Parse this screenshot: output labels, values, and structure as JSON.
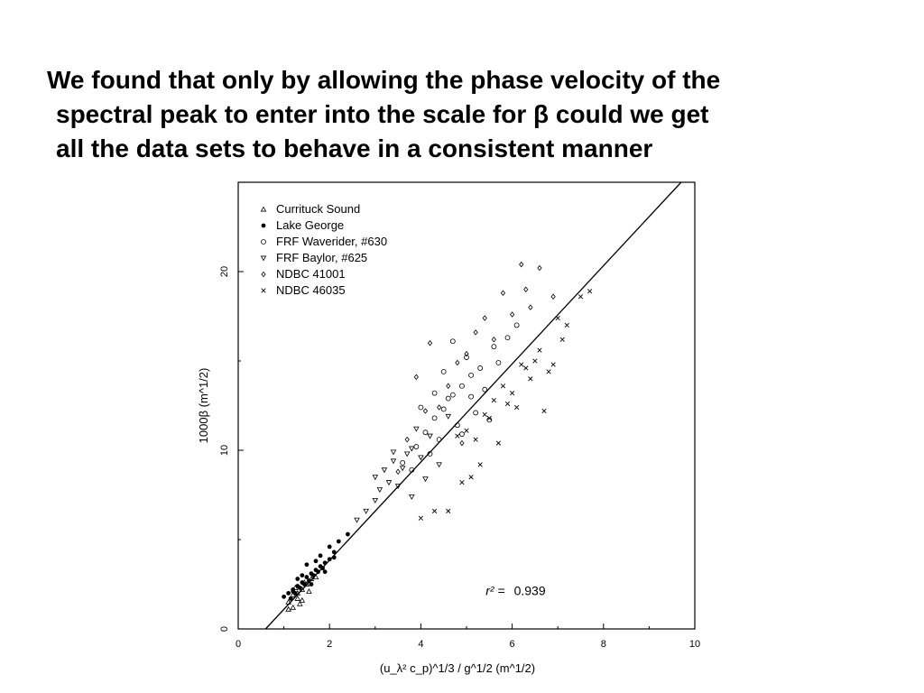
{
  "slide": {
    "lines": [
      "We found that only by allowing the phase velocity of the",
      "spectral peak to enter into the scale for β could we get",
      "all the data sets to behave in a consistent manner"
    ]
  },
  "chart_data": {
    "type": "scatter",
    "title": "",
    "xlabel": "(u_λ² c_p)^1/3 / g^1/2 (m^1/2)",
    "ylabel": "1000β (m^1/2)",
    "xlim": [
      0,
      10
    ],
    "ylim": [
      0,
      25
    ],
    "x_ticks": [
      "0",
      "2",
      "4",
      "6",
      "8",
      "10"
    ],
    "y_ticks": [
      "0",
      "10",
      "20"
    ],
    "grid": false,
    "legend_position": "top-left",
    "fit_line": {
      "x": [
        0.6,
        9.7
      ],
      "y": [
        0,
        25
      ]
    },
    "annotation": {
      "label": "r² =",
      "value": "0.939"
    },
    "colors": {
      "marks": "#000000",
      "background": "#ffffff"
    },
    "series": [
      {
        "name": "Currituck Sound",
        "marker": "triangle-up",
        "x": [
          1.1,
          1.2,
          1.3,
          1.4,
          1.2,
          1.5,
          1.3,
          1.6,
          1.1,
          1.4,
          1.7,
          1.25,
          1.35,
          1.45,
          1.55
        ],
        "y": [
          1.5,
          1.9,
          1.7,
          2.2,
          1.2,
          2.5,
          2.0,
          2.8,
          1.1,
          1.6,
          2.9,
          2.3,
          1.4,
          2.6,
          2.1
        ]
      },
      {
        "name": "Lake George",
        "marker": "filled-circle",
        "x": [
          1.0,
          1.1,
          1.2,
          1.3,
          1.4,
          1.5,
          1.6,
          1.7,
          1.8,
          1.9,
          2.0,
          2.1,
          1.15,
          1.25,
          1.35,
          1.45,
          1.55,
          1.65,
          1.75,
          1.85,
          1.3,
          1.5,
          1.7,
          1.2,
          1.4,
          1.6,
          1.8,
          2.0,
          2.2,
          2.4,
          1.9,
          2.1
        ],
        "y": [
          1.8,
          2.0,
          2.2,
          2.4,
          2.6,
          2.9,
          3.1,
          3.3,
          3.5,
          3.7,
          3.9,
          4.3,
          1.7,
          2.0,
          2.3,
          2.5,
          2.7,
          3.0,
          3.2,
          3.4,
          2.8,
          3.6,
          3.8,
          2.1,
          3.0,
          2.5,
          4.1,
          4.6,
          4.9,
          5.3,
          3.2,
          4.0
        ]
      },
      {
        "name": "FRF Waverider, #630",
        "marker": "open-circle",
        "x": [
          3.9,
          4.1,
          4.3,
          4.5,
          4.7,
          4.9,
          5.1,
          5.3,
          4.0,
          4.2,
          4.4,
          4.6,
          4.8,
          5.0,
          5.2,
          5.4,
          5.6,
          3.8,
          4.5,
          4.9,
          5.5,
          3.6,
          4.3,
          4.7,
          5.1,
          5.7,
          5.9,
          6.1
        ],
        "y": [
          10.2,
          11.0,
          11.8,
          12.3,
          13.1,
          13.6,
          14.2,
          14.6,
          12.4,
          9.8,
          10.6,
          12.9,
          11.4,
          15.2,
          12.1,
          13.4,
          15.8,
          8.9,
          14.4,
          10.9,
          11.7,
          9.3,
          13.2,
          16.1,
          13.0,
          14.9,
          16.3,
          17.0
        ]
      },
      {
        "name": "FRF Baylor, #625",
        "marker": "triangle-down",
        "x": [
          3.0,
          3.2,
          3.4,
          3.6,
          3.8,
          4.0,
          4.2,
          3.1,
          3.3,
          3.5,
          3.7,
          3.9,
          4.1,
          2.8,
          2.6,
          3.4,
          3.8,
          4.4,
          4.6,
          3.0
        ],
        "y": [
          8.5,
          8.9,
          9.4,
          9.0,
          10.1,
          9.6,
          10.8,
          7.8,
          8.2,
          8.0,
          9.8,
          11.2,
          8.4,
          6.6,
          6.1,
          9.9,
          7.4,
          9.2,
          11.9,
          7.2
        ]
      },
      {
        "name": "NDBC 41001",
        "marker": "diamond",
        "x": [
          3.5,
          3.9,
          4.2,
          4.6,
          5.0,
          5.4,
          5.8,
          6.2,
          6.6,
          6.9,
          6.0,
          6.4,
          5.2,
          4.4,
          4.8,
          5.6,
          4.1,
          3.7,
          4.9,
          6.3
        ],
        "y": [
          8.8,
          14.1,
          16.0,
          13.6,
          15.4,
          17.4,
          18.8,
          20.4,
          20.2,
          18.6,
          17.6,
          18.0,
          16.6,
          12.4,
          14.9,
          16.2,
          12.2,
          10.6,
          10.4,
          19.0
        ]
      },
      {
        "name": "NDBC 46035",
        "marker": "x",
        "x": [
          4.8,
          5.0,
          5.2,
          5.4,
          5.6,
          5.8,
          6.0,
          6.2,
          6.4,
          6.6,
          6.8,
          7.0,
          7.2,
          7.5,
          7.7,
          5.1,
          5.3,
          5.5,
          5.9,
          6.3,
          6.7,
          7.1,
          4.6,
          4.9,
          5.7,
          6.1,
          6.5,
          6.9,
          4.0,
          4.3
        ],
        "y": [
          10.8,
          11.1,
          10.6,
          12.0,
          12.8,
          13.6,
          13.2,
          14.8,
          14.0,
          15.6,
          14.4,
          17.4,
          17.0,
          18.6,
          18.9,
          8.5,
          9.2,
          11.8,
          12.6,
          14.6,
          12.2,
          16.2,
          6.6,
          8.2,
          10.4,
          12.4,
          15.0,
          14.8,
          6.2,
          6.6
        ]
      }
    ]
  }
}
